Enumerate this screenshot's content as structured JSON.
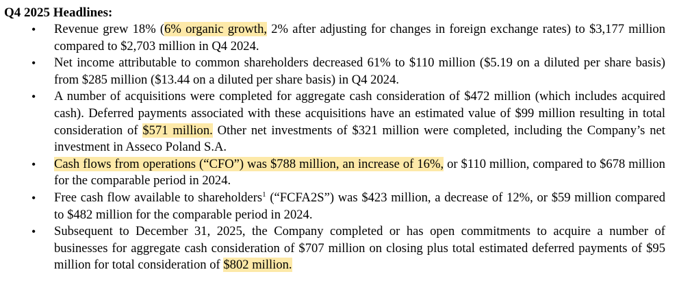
{
  "heading": "Q4 2025 Headlines:",
  "highlight_color": "#fde9a8",
  "bullet_glyph": "•",
  "bullets": [
    {
      "segments": [
        {
          "text": "Revenue grew 18% (",
          "hl": false
        },
        {
          "text": "6% organic growth,",
          "hl": true
        },
        {
          "text": " 2% after adjusting for changes in foreign exchange rates) to $3,177 million compared to $2,703 million in Q4 2024.",
          "hl": false
        }
      ]
    },
    {
      "segments": [
        {
          "text": "Net income attributable to common shareholders decreased 61% to $110 million ($5.19 on a diluted per share basis) from $285 million ($13.44 on a diluted per share basis) in Q4 2024.",
          "hl": false
        }
      ]
    },
    {
      "segments": [
        {
          "text": "A number of acquisitions were completed for aggregate cash consideration of $472 million (which includes acquired cash).  Deferred payments associated with these acquisitions have an estimated value of $99 million resulting in total consideration of ",
          "hl": false
        },
        {
          "text": "$571 million.",
          "hl": true
        },
        {
          "text": "  Other net investments of $321 million were completed, including the Company’s net investment in Asseco Poland S.A.",
          "hl": false
        }
      ]
    },
    {
      "segments": [
        {
          "text": "Cash flows from operations (“CFO”) was $788 million, an increase of 16%,",
          "hl": true
        },
        {
          "text": " or $110 million, compared to $678 million for the comparable period in 2024.",
          "hl": false
        }
      ]
    },
    {
      "segments": [
        {
          "text": "Free cash flow available to shareholders",
          "hl": false
        },
        {
          "text": "1",
          "hl": false,
          "sup": true
        },
        {
          "text": " (“FCFA2S”) was $423 million, a decrease of 12%, or $59 million compared to $482 million for the comparable period in 2024.",
          "hl": false
        }
      ]
    },
    {
      "segments": [
        {
          "text": "Subsequent to December 31, 2025, the Company completed or has open commitments to acquire a number of businesses for aggregate cash consideration of $707 million on closing plus total estimated deferred payments of $95 million for total consideration of ",
          "hl": false
        },
        {
          "text": "$802 million.",
          "hl": true
        }
      ]
    }
  ]
}
